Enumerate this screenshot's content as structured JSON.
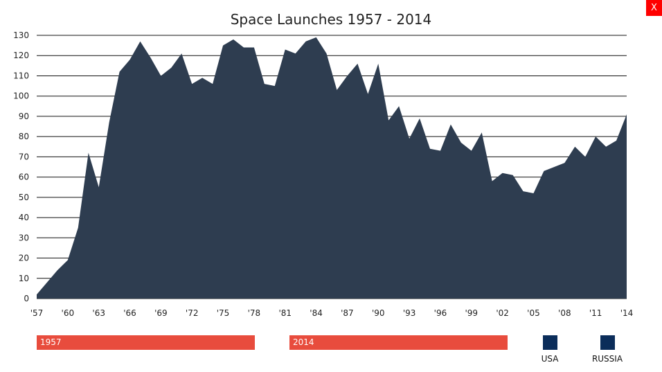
{
  "close_button": {
    "label": "X"
  },
  "range": {
    "start_label": "1957",
    "end_label": "2014"
  },
  "legend": {
    "items": [
      {
        "label": "USA",
        "color": "#0b2d5a"
      },
      {
        "label": "RUSSIA",
        "color": "#0b2d5a"
      }
    ]
  },
  "chart_data": {
    "type": "area",
    "title": "Space Launches 1957 - 2014",
    "xlabel": "",
    "ylabel": "",
    "ylim": [
      0,
      130
    ],
    "yticks": [
      0,
      10,
      20,
      30,
      40,
      50,
      60,
      70,
      80,
      90,
      100,
      110,
      120,
      130
    ],
    "xticks": [
      {
        "year": 1957,
        "label": "'57"
      },
      {
        "year": 1960,
        "label": "'60"
      },
      {
        "year": 1963,
        "label": "'63"
      },
      {
        "year": 1966,
        "label": "'66"
      },
      {
        "year": 1969,
        "label": "'69"
      },
      {
        "year": 1972,
        "label": "'72"
      },
      {
        "year": 1975,
        "label": "'75"
      },
      {
        "year": 1978,
        "label": "'78"
      },
      {
        "year": 1981,
        "label": "'81"
      },
      {
        "year": 1984,
        "label": "'84"
      },
      {
        "year": 1987,
        "label": "'87"
      },
      {
        "year": 1990,
        "label": "'90"
      },
      {
        "year": 1993,
        "label": "'93"
      },
      {
        "year": 1996,
        "label": "'96"
      },
      {
        "year": 1999,
        "label": "'99"
      },
      {
        "year": 2002,
        "label": "'02"
      },
      {
        "year": 2005,
        "label": "'05"
      },
      {
        "year": 2008,
        "label": "'08"
      },
      {
        "year": 2011,
        "label": "'11"
      },
      {
        "year": 2014,
        "label": "'14"
      }
    ],
    "grid": true,
    "color": "#2e3d50",
    "x": [
      1957,
      1958,
      1959,
      1960,
      1961,
      1962,
      1963,
      1964,
      1965,
      1966,
      1967,
      1968,
      1969,
      1970,
      1971,
      1972,
      1973,
      1974,
      1975,
      1976,
      1977,
      1978,
      1979,
      1980,
      1981,
      1982,
      1983,
      1984,
      1985,
      1986,
      1987,
      1988,
      1989,
      1990,
      1991,
      1992,
      1993,
      1994,
      1995,
      1996,
      1997,
      1998,
      1999,
      2000,
      2001,
      2002,
      2003,
      2004,
      2005,
      2006,
      2007,
      2008,
      2009,
      2010,
      2011,
      2012,
      2013,
      2014
    ],
    "values": [
      2,
      8,
      14,
      19,
      35,
      72,
      55,
      87,
      112,
      118,
      127,
      119,
      110,
      114,
      121,
      106,
      109,
      106,
      125,
      128,
      124,
      124,
      106,
      105,
      123,
      121,
      127,
      129,
      121,
      103,
      110,
      116,
      101,
      116,
      88,
      95,
      79,
      89,
      74,
      73,
      86,
      77,
      73,
      82,
      58,
      62,
      61,
      53,
      52,
      63,
      65,
      67,
      75,
      70,
      80,
      75,
      78,
      91
    ]
  }
}
